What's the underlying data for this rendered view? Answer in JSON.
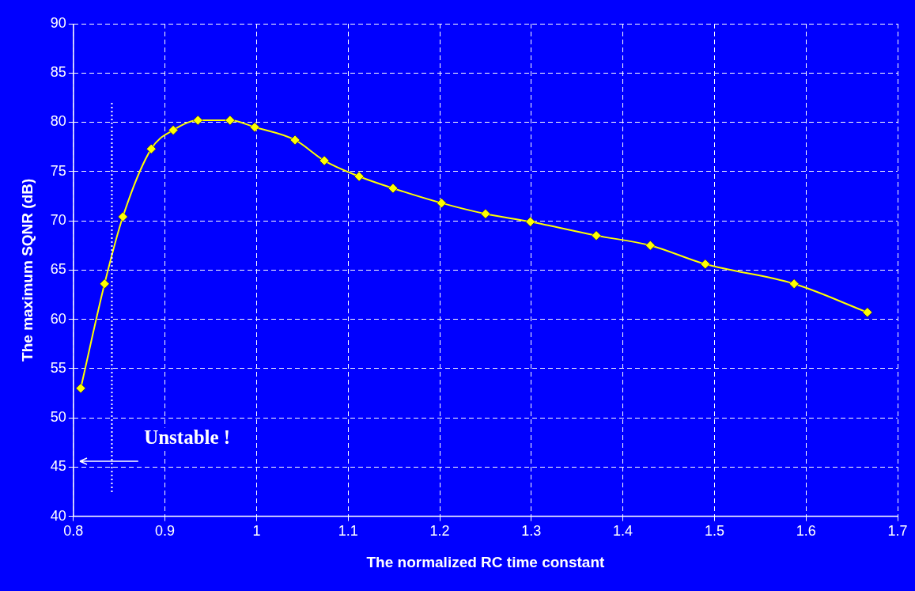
{
  "chart_data": {
    "type": "line",
    "xlabel": "The normalized RC time constant",
    "ylabel": "The maximum SQNR (dB)",
    "x": [
      0.808,
      0.834,
      0.854,
      0.885,
      0.909,
      0.936,
      0.971,
      0.998,
      1.042,
      1.074,
      1.112,
      1.149,
      1.202,
      1.25,
      1.299,
      1.371,
      1.43,
      1.49,
      1.587,
      1.667
    ],
    "series": [
      {
        "color": "#ffff00",
        "values": [
          53.0,
          63.6,
          70.4,
          77.3,
          79.2,
          80.2,
          80.2,
          79.5,
          78.2,
          76.1,
          74.5,
          73.3,
          71.8,
          70.7,
          69.9,
          68.5,
          67.5,
          65.6,
          63.6,
          60.7
        ]
      }
    ],
    "xlim": [
      0.8,
      1.7
    ],
    "xticks": [
      0.8,
      0.9,
      1,
      1.1,
      1.2,
      1.3,
      1.4,
      1.5,
      1.6,
      1.7
    ],
    "ylim": [
      40,
      90
    ],
    "yticks": [
      40,
      45,
      50,
      55,
      60,
      65,
      70,
      75,
      80,
      85,
      90
    ],
    "grid": true,
    "legend": false,
    "marker": "diamond",
    "line_style": "solid",
    "ref_lines": [
      {
        "axis": "x",
        "value": 0.842,
        "color": "#ffffff",
        "line_style": "dotted"
      }
    ],
    "annotations": [
      "Unstable !"
    ]
  }
}
